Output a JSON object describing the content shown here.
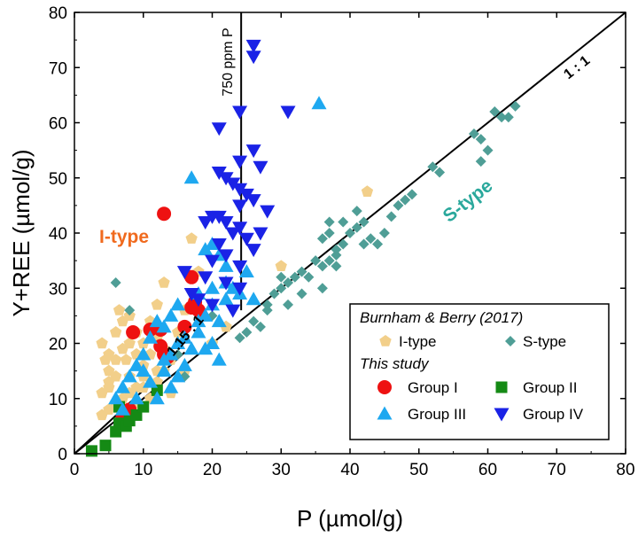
{
  "chart_data": {
    "type": "scatter",
    "xlabel": "P (µmol/g)",
    "ylabel": "Y+REE (µmol/g)",
    "xlim": [
      0,
      80
    ],
    "ylim": [
      0,
      80
    ],
    "xticks": [
      "0",
      "10",
      "20",
      "30",
      "40",
      "50",
      "60",
      "70",
      "80"
    ],
    "yticks": [
      "0",
      "10",
      "20",
      "30",
      "40",
      "50",
      "60",
      "70",
      "80"
    ],
    "grid": false,
    "legend_position": "bottom-right",
    "annotations": {
      "one_to_one": "1 : 1",
      "ratio_115": "1.15 : 1",
      "ppm_line": "750 ppm P",
      "itype_label": "I-type",
      "stype_label": "S-type"
    },
    "colors": {
      "itype": "#f2cf8a",
      "stype": "#4f9e96",
      "group1": "#ee1111",
      "group2": "#158a15",
      "group3": "#1ea8f0",
      "group4": "#1a22e6",
      "itype_label": "#f06a1e",
      "stype_label": "#2aa89c"
    },
    "legend": {
      "head1": "Burnham & Berry (2017)",
      "itype": "I-type",
      "stype": "S-type",
      "head2": "This study",
      "group1": "Group I",
      "group2": "Group II",
      "group3": "Group III",
      "group4": "Group IV"
    },
    "lines": [
      {
        "name": "1 : 1",
        "x": [
          0,
          80
        ],
        "y": [
          0,
          80
        ]
      },
      {
        "name": "1.15 : 1",
        "x": [
          0,
          16
        ],
        "y": [
          0,
          18.4
        ]
      },
      {
        "name": "750 ppm P",
        "x": [
          24.2,
          24.2
        ],
        "y": [
          26,
          80
        ]
      }
    ],
    "series": [
      {
        "key": "itype",
        "name": "I-type",
        "marker": "pentagon",
        "points": [
          [
            4,
            20
          ],
          [
            4.5,
            17
          ],
          [
            5,
            18
          ],
          [
            5,
            15
          ],
          [
            4,
            11
          ],
          [
            5,
            12
          ],
          [
            6,
            14
          ],
          [
            6,
            22
          ],
          [
            6.5,
            26
          ],
          [
            7,
            24
          ],
          [
            7,
            19
          ],
          [
            7.5,
            17
          ],
          [
            8,
            20
          ],
          [
            8,
            14
          ],
          [
            9,
            22
          ],
          [
            9,
            18
          ],
          [
            10,
            20
          ],
          [
            10,
            16
          ],
          [
            10,
            12
          ],
          [
            11,
            24
          ],
          [
            11,
            18
          ],
          [
            12,
            21
          ],
          [
            12,
            15
          ],
          [
            12,
            27
          ],
          [
            13,
            31
          ],
          [
            13,
            19
          ],
          [
            14,
            17
          ],
          [
            15,
            22
          ],
          [
            16,
            26
          ],
          [
            17,
            39
          ],
          [
            18,
            33
          ],
          [
            5,
            8
          ],
          [
            6,
            9
          ],
          [
            7,
            10
          ],
          [
            8,
            11
          ],
          [
            9,
            12
          ],
          [
            10,
            14
          ],
          [
            14,
            11
          ],
          [
            16,
            15
          ],
          [
            20,
            20
          ],
          [
            22,
            23
          ],
          [
            42.5,
            47.5
          ],
          [
            30,
            34
          ],
          [
            5,
            13
          ],
          [
            6,
            17
          ],
          [
            8,
            25
          ],
          [
            9,
            9
          ],
          [
            11,
            10
          ],
          [
            12,
            13
          ],
          [
            13,
            15
          ],
          [
            7,
            8
          ],
          [
            4,
            7
          ]
        ]
      },
      {
        "key": "stype",
        "name": "S-type",
        "marker": "diamond",
        "points": [
          [
            6,
            31
          ],
          [
            24,
            21
          ],
          [
            25,
            22
          ],
          [
            26,
            24
          ],
          [
            27,
            23
          ],
          [
            28,
            27
          ],
          [
            29,
            29
          ],
          [
            30,
            30
          ],
          [
            31,
            31
          ],
          [
            32,
            32
          ],
          [
            33,
            29
          ],
          [
            35,
            35
          ],
          [
            36,
            34
          ],
          [
            36,
            39
          ],
          [
            37,
            40
          ],
          [
            37,
            42
          ],
          [
            38,
            37
          ],
          [
            38,
            34
          ],
          [
            39,
            42
          ],
          [
            40,
            40
          ],
          [
            41,
            41
          ],
          [
            42,
            42
          ],
          [
            42,
            38
          ],
          [
            43,
            39
          ],
          [
            44,
            38
          ],
          [
            45,
            40
          ],
          [
            46,
            43
          ],
          [
            47,
            45
          ],
          [
            48,
            46
          ],
          [
            49,
            47
          ],
          [
            52,
            52
          ],
          [
            53,
            51
          ],
          [
            58,
            58
          ],
          [
            59,
            57
          ],
          [
            59,
            53
          ],
          [
            60,
            55
          ],
          [
            61,
            62
          ],
          [
            62,
            61
          ],
          [
            63,
            61
          ],
          [
            64,
            63
          ],
          [
            34,
            32
          ],
          [
            33,
            33
          ],
          [
            38,
            36
          ],
          [
            8,
            26
          ],
          [
            20,
            25
          ],
          [
            15,
            18
          ],
          [
            16,
            14
          ],
          [
            31,
            27
          ],
          [
            28,
            26
          ],
          [
            30,
            32
          ],
          [
            36,
            30
          ],
          [
            37,
            35
          ],
          [
            39,
            38
          ],
          [
            41,
            44
          ]
        ]
      },
      {
        "key": "group1",
        "name": "Group I",
        "marker": "circle",
        "points": [
          [
            13,
            43.5
          ],
          [
            17,
            32
          ],
          [
            17.5,
            27.5
          ],
          [
            18,
            26
          ],
          [
            12.5,
            22.5
          ],
          [
            11,
            22.5
          ],
          [
            8.5,
            22
          ],
          [
            12.5,
            19.5
          ],
          [
            13,
            18
          ],
          [
            16,
            23
          ],
          [
            13.5,
            17.5
          ],
          [
            8,
            8
          ],
          [
            7,
            6.5
          ],
          [
            17,
            26.5
          ]
        ]
      },
      {
        "key": "group2",
        "name": "Group II",
        "marker": "square",
        "points": [
          [
            2.5,
            0.5
          ],
          [
            4.5,
            1.5
          ],
          [
            6,
            4
          ],
          [
            6.5,
            5.5
          ],
          [
            6.5,
            8.5
          ],
          [
            7.5,
            5
          ],
          [
            8,
            6
          ],
          [
            9,
            7
          ],
          [
            10,
            8.5
          ],
          [
            12,
            11.5
          ]
        ]
      },
      {
        "key": "group3",
        "name": "Group III",
        "marker": "triangle-up",
        "points": [
          [
            17,
            50
          ],
          [
            35.5,
            63.5
          ],
          [
            19,
            37
          ],
          [
            20,
            38
          ],
          [
            21,
            36
          ],
          [
            22,
            34
          ],
          [
            20,
            30
          ],
          [
            18,
            29
          ],
          [
            15,
            27
          ],
          [
            14,
            25
          ],
          [
            13,
            23
          ],
          [
            12,
            24
          ],
          [
            11,
            21
          ],
          [
            10,
            18
          ],
          [
            9,
            16
          ],
          [
            8,
            14
          ],
          [
            7,
            12
          ],
          [
            6,
            10
          ],
          [
            7,
            8
          ],
          [
            9,
            10
          ],
          [
            11,
            13
          ],
          [
            13,
            15
          ],
          [
            14,
            18
          ],
          [
            15,
            20
          ],
          [
            16,
            16
          ],
          [
            17,
            19
          ],
          [
            18,
            22
          ],
          [
            19,
            25
          ],
          [
            20,
            27
          ],
          [
            21,
            24
          ],
          [
            22,
            31
          ],
          [
            23,
            30
          ],
          [
            24,
            29
          ],
          [
            25,
            33
          ],
          [
            26,
            28
          ],
          [
            15,
            14
          ],
          [
            13,
            17
          ],
          [
            10,
            15
          ],
          [
            16,
            21
          ],
          [
            18,
            24
          ],
          [
            20,
            20
          ],
          [
            21,
            17
          ],
          [
            12,
            10
          ],
          [
            14,
            12
          ],
          [
            19,
            19
          ],
          [
            22,
            28
          ]
        ]
      },
      {
        "key": "group4",
        "name": "Group IV",
        "marker": "triangle-down",
        "points": [
          [
            26,
            74
          ],
          [
            26,
            72
          ],
          [
            24,
            62
          ],
          [
            31,
            62
          ],
          [
            21,
            59
          ],
          [
            26,
            55
          ],
          [
            24,
            53
          ],
          [
            27,
            52
          ],
          [
            21,
            51
          ],
          [
            22,
            50
          ],
          [
            23,
            49
          ],
          [
            24,
            48
          ],
          [
            25,
            47
          ],
          [
            26,
            46
          ],
          [
            24,
            45
          ],
          [
            28,
            44
          ],
          [
            20,
            43
          ],
          [
            21,
            43
          ],
          [
            19,
            42
          ],
          [
            22,
            42
          ],
          [
            24,
            41
          ],
          [
            23,
            40
          ],
          [
            27,
            40
          ],
          [
            25,
            39
          ],
          [
            21,
            38
          ],
          [
            26,
            37
          ],
          [
            22,
            36
          ],
          [
            20,
            35
          ],
          [
            24,
            34
          ],
          [
            16,
            33
          ],
          [
            19,
            32
          ],
          [
            22,
            31
          ],
          [
            24,
            30
          ],
          [
            17,
            29
          ],
          [
            18,
            28
          ],
          [
            20,
            27
          ],
          [
            23,
            26
          ]
        ]
      }
    ]
  }
}
